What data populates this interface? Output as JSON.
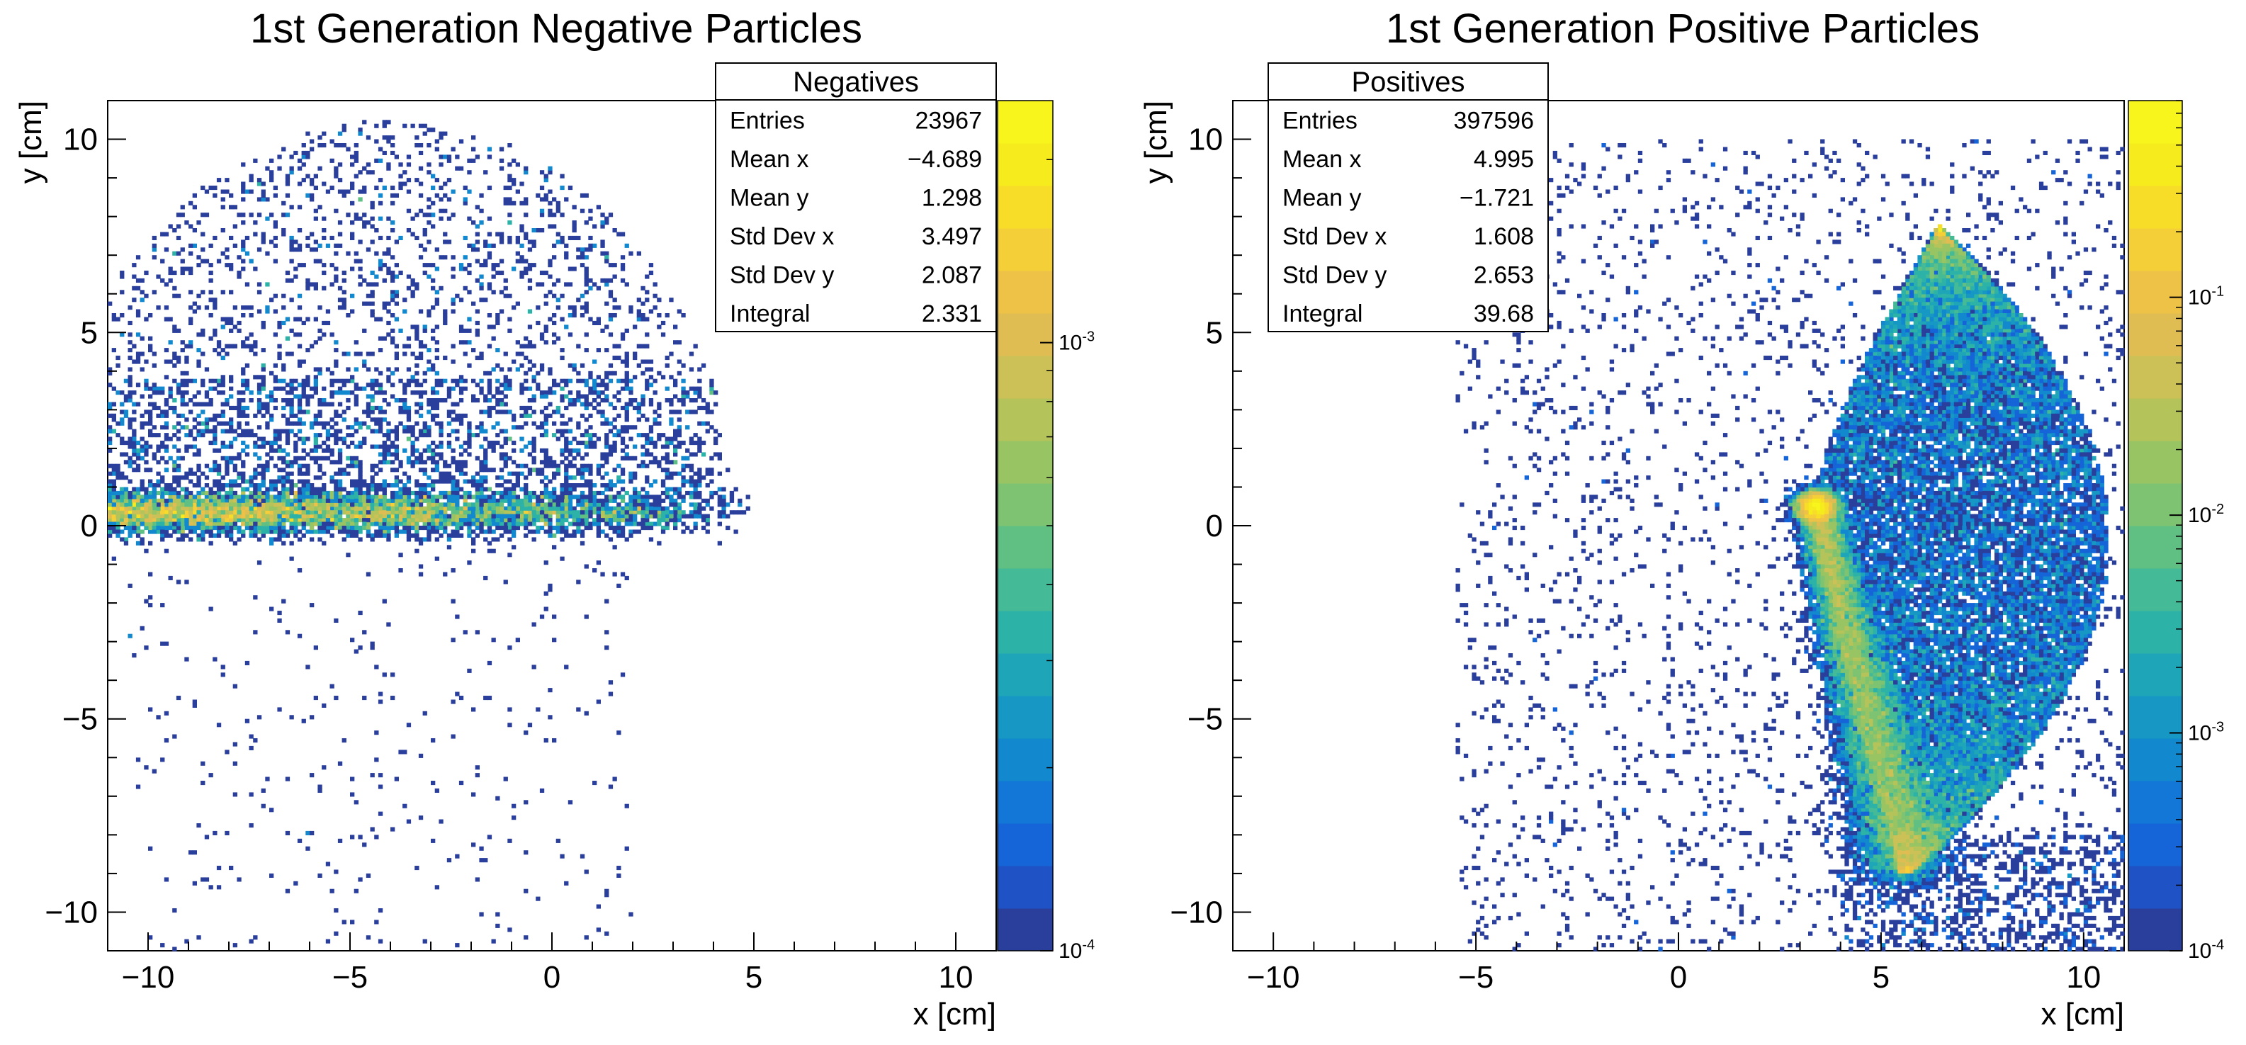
{
  "figure": {
    "panels": [
      {
        "id": "negatives",
        "title": "1st Generation Negative Particles",
        "stats_box": {
          "name": "Negatives",
          "rows": [
            {
              "label": "Entries",
              "value": "23967"
            },
            {
              "label": "Mean x",
              "value": "−4.689"
            },
            {
              "label": "Mean y",
              "value": "1.298"
            },
            {
              "label": "Std Dev x",
              "value": "3.497"
            },
            {
              "label": "Std Dev y",
              "value": "2.087"
            },
            {
              "label": "Integral",
              "value": "2.331"
            }
          ]
        },
        "palette_labels": [
          {
            "base": "10",
            "exp": "-3",
            "value": 0.001
          },
          {
            "base": "10",
            "exp": "-4",
            "value": 0.0001
          }
        ]
      },
      {
        "id": "positives",
        "title": "1st Generation Positive Particles",
        "stats_box": {
          "name": "Positives",
          "rows": [
            {
              "label": "Entries",
              "value": "397596"
            },
            {
              "label": "Mean x",
              "value": "4.995"
            },
            {
              "label": "Mean y",
              "value": "−1.721"
            },
            {
              "label": "Std Dev x",
              "value": "1.608"
            },
            {
              "label": "Std Dev y",
              "value": "2.653"
            },
            {
              "label": "Integral",
              "value": "39.68"
            }
          ]
        },
        "palette_labels": [
          {
            "base": "10",
            "exp": "-1",
            "value": 0.1
          },
          {
            "base": "10",
            "exp": "-2",
            "value": 0.01
          },
          {
            "base": "10",
            "exp": "-3",
            "value": 0.001
          },
          {
            "base": "10",
            "exp": "-4",
            "value": 0.0001
          }
        ]
      }
    ]
  },
  "chart_data": [
    {
      "type": "heatmap",
      "title": "1st Generation Negative Particles",
      "xlabel": "x [cm]",
      "ylabel": "y [cm]",
      "xlim": [
        -11,
        11
      ],
      "ylim": [
        -11,
        11
      ],
      "xticks": [
        "−10",
        "−5",
        "0",
        "5",
        "10"
      ],
      "yticks": [
        "−10",
        "−5",
        "0",
        "5",
        "10"
      ],
      "z_scale": "log",
      "zlim": [
        0.0001,
        0.0025
      ],
      "entries": 23967,
      "mean_x": -4.689,
      "mean_y": 1.298,
      "std_dev_x": 3.497,
      "std_dev_y": 2.087,
      "integral": 2.331,
      "description_regions": [
        {
          "shape": "band",
          "x_range": [
            -11,
            5
          ],
          "y_center": 0.4,
          "y_halfwidth": 0.4,
          "level": "max"
        },
        {
          "shape": "dome",
          "x_range": [
            -11,
            5
          ],
          "y_range": [
            0,
            10.5
          ],
          "level": "sparse"
        },
        {
          "shape": "scatter",
          "x_range": [
            -11,
            2
          ],
          "y_range": [
            -11,
            0
          ],
          "level": "very sparse"
        }
      ],
      "grid": false,
      "legend": "stats box top-right"
    },
    {
      "type": "heatmap",
      "title": "1st Generation Positive Particles",
      "xlabel": "x [cm]",
      "ylabel": "y [cm]",
      "xlim": [
        -11,
        11
      ],
      "ylim": [
        -11,
        11
      ],
      "xticks": [
        "−10",
        "−5",
        "0",
        "5",
        "10"
      ],
      "yticks": [
        "−10",
        "−5",
        "0",
        "5",
        "10"
      ],
      "z_scale": "log",
      "zlim": [
        0.0001,
        0.8
      ],
      "entries": 397596,
      "mean_x": 4.995,
      "mean_y": -1.721,
      "std_dev_x": 1.608,
      "std_dev_y": 2.653,
      "integral": 39.68,
      "description_regions": [
        {
          "shape": "hotspot",
          "x": 3.4,
          "y": 0.5,
          "level": "max"
        },
        {
          "shape": "arc",
          "from": [
            3.4,
            0.5
          ],
          "to": [
            5.5,
            -9.0
          ],
          "level": "high"
        },
        {
          "shape": "fan",
          "x_range": [
            3,
            10.5
          ],
          "y_range": [
            -9,
            8.5
          ],
          "level": "medium"
        },
        {
          "shape": "scatter",
          "x_range": [
            -5.5,
            11
          ],
          "y_range": [
            -11,
            10
          ],
          "level": "sparse"
        }
      ],
      "grid": false,
      "legend": "stats box top-right"
    }
  ],
  "palette_colors": [
    "#2a3e9c",
    "#1f52c4",
    "#1565d8",
    "#1277d6",
    "#1289ce",
    "#1798c4",
    "#1ea6b8",
    "#2db2a8",
    "#45ba96",
    "#60c083",
    "#7dc371",
    "#99c463",
    "#b4c35a",
    "#ccc157",
    "#e0bd52",
    "#eec247",
    "#f5cf38",
    "#f7dd28",
    "#f6eb1d",
    "#f7f51c"
  ]
}
